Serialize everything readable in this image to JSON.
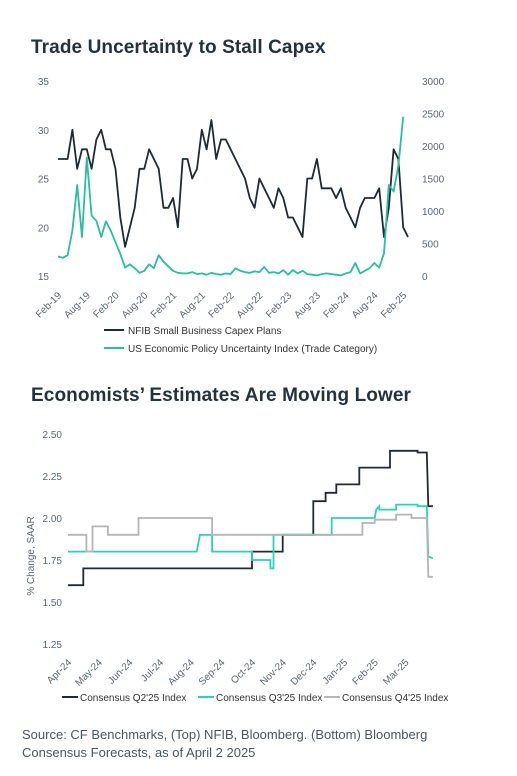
{
  "chart1": {
    "title": "Trade Uncertainty to Stall Capex",
    "chart_data": {
      "type": "line",
      "left_axis": {
        "ticks": [
          15,
          20,
          25,
          30,
          35
        ],
        "ylim": [
          15,
          35
        ]
      },
      "right_axis": {
        "ticks": [
          0,
          500,
          1000,
          1500,
          2000,
          2500,
          3000
        ],
        "ylim": [
          0,
          3000
        ]
      },
      "x_ticks": [
        "Feb-19",
        "Aug-19",
        "Feb-20",
        "Aug-20",
        "Feb-21",
        "Aug-21",
        "Feb-22",
        "Aug-22",
        "Feb-23",
        "Aug-23",
        "Feb-24",
        "Aug-24",
        "Feb-25"
      ],
      "x_start": "2019-02",
      "series": [
        {
          "name": "NFIB Small Business Capex Plans",
          "axis": "left",
          "color": "#1e2b33",
          "values": [
            27,
            27,
            27,
            30,
            26,
            28,
            28,
            26,
            29,
            30,
            28,
            28,
            26,
            21,
            18,
            20,
            22,
            26,
            26,
            28,
            27,
            26,
            22,
            22,
            23,
            20,
            27,
            27,
            25,
            26,
            30,
            28,
            31,
            27,
            29,
            29,
            28,
            27,
            26,
            25,
            23,
            22,
            25,
            24,
            23,
            22,
            24,
            23,
            21,
            21,
            20,
            19,
            25,
            25,
            27,
            24,
            24,
            24,
            23,
            24,
            22,
            21,
            20,
            22,
            23,
            23,
            23,
            24,
            19,
            22,
            28,
            27,
            20,
            19
          ]
        },
        {
          "name": "US Economic Policy Uncertainty Index (Trade Category)",
          "axis": "right",
          "color": "#2bbd9e",
          "values": [
            300,
            280,
            320,
            700,
            1400,
            600,
            1820,
            930,
            850,
            600,
            840,
            700,
            520,
            340,
            130,
            180,
            120,
            50,
            80,
            180,
            120,
            320,
            220,
            150,
            80,
            50,
            40,
            40,
            60,
            30,
            40,
            20,
            50,
            30,
            20,
            40,
            30,
            120,
            80,
            60,
            50,
            70,
            60,
            140,
            50,
            60,
            40,
            90,
            20,
            90,
            40,
            80,
            30,
            20,
            10,
            30,
            40,
            30,
            20,
            10,
            40,
            60,
            200,
            40,
            80,
            120,
            200,
            130,
            350,
            1400,
            1300,
            1700,
            2450
          ]
        }
      ]
    },
    "legend": [
      "NFIB Small Business Capex Plans",
      "US Economic Policy Uncertainty Index (Trade Category)"
    ]
  },
  "chart2": {
    "title": "Economists’ Estimates Are Moving Lower",
    "chart_data": {
      "type": "line",
      "ylabel": "% Change, SAAR",
      "ylim": [
        1.25,
        2.5
      ],
      "y_ticks": [
        "1.25",
        "1.50",
        "1.75",
        "2.00",
        "2.25",
        "2.50"
      ],
      "x_ticks": [
        "Apr-24",
        "May-24",
        "Jun-24",
        "Jul-24",
        "Aug-24",
        "Sep-24",
        "Oct-24",
        "Nov-24",
        "Dec-24",
        "Jan-25",
        "Feb-25",
        "Mar-25"
      ],
      "series": [
        {
          "name": "Consensus Q2'25 Index",
          "color": "#1e2b33",
          "points": [
            [
              0,
              1.6
            ],
            [
              0.5,
              1.6
            ],
            [
              0.5,
              1.7
            ],
            [
              6.0,
              1.7
            ],
            [
              6.0,
              1.8
            ],
            [
              7.0,
              1.8
            ],
            [
              7.0,
              1.9
            ],
            [
              8.0,
              1.9
            ],
            [
              8.0,
              2.1
            ],
            [
              8.4,
              2.1
            ],
            [
              8.4,
              2.15
            ],
            [
              8.75,
              2.15
            ],
            [
              8.75,
              2.2
            ],
            [
              9.5,
              2.2
            ],
            [
              9.5,
              2.3
            ],
            [
              10.5,
              2.3
            ],
            [
              10.5,
              2.4
            ],
            [
              11.4,
              2.4
            ],
            [
              11.4,
              2.39
            ],
            [
              11.7,
              2.39
            ],
            [
              11.75,
              2.07
            ],
            [
              11.9,
              2.07
            ]
          ]
        },
        {
          "name": "Consensus Q3'25 Index",
          "color": "#2bd3b1",
          "points": [
            [
              0,
              1.8
            ],
            [
              4.2,
              1.8
            ],
            [
              4.3,
              1.9
            ],
            [
              4.7,
              1.9
            ],
            [
              4.7,
              1.8
            ],
            [
              6.0,
              1.8
            ],
            [
              6.0,
              1.75
            ],
            [
              6.6,
              1.75
            ],
            [
              6.6,
              1.7
            ],
            [
              6.7,
              1.7
            ],
            [
              6.7,
              1.9
            ],
            [
              8.6,
              1.9
            ],
            [
              8.6,
              2.0
            ],
            [
              10.0,
              2.0
            ],
            [
              10.05,
              2.05
            ],
            [
              10.15,
              2.07
            ],
            [
              10.15,
              2.05
            ],
            [
              10.7,
              2.05
            ],
            [
              10.7,
              2.08
            ],
            [
              11.4,
              2.08
            ],
            [
              11.4,
              2.07
            ],
            [
              11.7,
              2.07
            ],
            [
              11.75,
              1.77
            ],
            [
              11.9,
              1.76
            ]
          ]
        },
        {
          "name": "Consensus Q4'25 Index",
          "color": "#b5b5b5",
          "points": [
            [
              0,
              1.9
            ],
            [
              0.6,
              1.9
            ],
            [
              0.6,
              1.8
            ],
            [
              0.8,
              1.8
            ],
            [
              0.8,
              1.95
            ],
            [
              1.3,
              1.95
            ],
            [
              1.3,
              1.9
            ],
            [
              2.3,
              1.9
            ],
            [
              2.3,
              2.0
            ],
            [
              4.7,
              2.0
            ],
            [
              4.7,
              1.9
            ],
            [
              9.6,
              1.9
            ],
            [
              9.6,
              1.97
            ],
            [
              10.0,
              1.97
            ],
            [
              10.0,
              1.99
            ],
            [
              10.7,
              1.99
            ],
            [
              10.7,
              2.02
            ],
            [
              11.2,
              2.02
            ],
            [
              11.2,
              2.0
            ],
            [
              11.7,
              2.0
            ],
            [
              11.75,
              1.65
            ],
            [
              11.9,
              1.65
            ]
          ]
        }
      ]
    },
    "legend": [
      "Consensus Q2'25 Index",
      "Consensus Q3'25 Index",
      "Consensus Q4'25 Index"
    ]
  },
  "source": "Source: CF Benchmarks, (Top) NFIB, Bloomberg. (Bottom) Bloomberg Consensus Forecasts, as of April 2 2025"
}
